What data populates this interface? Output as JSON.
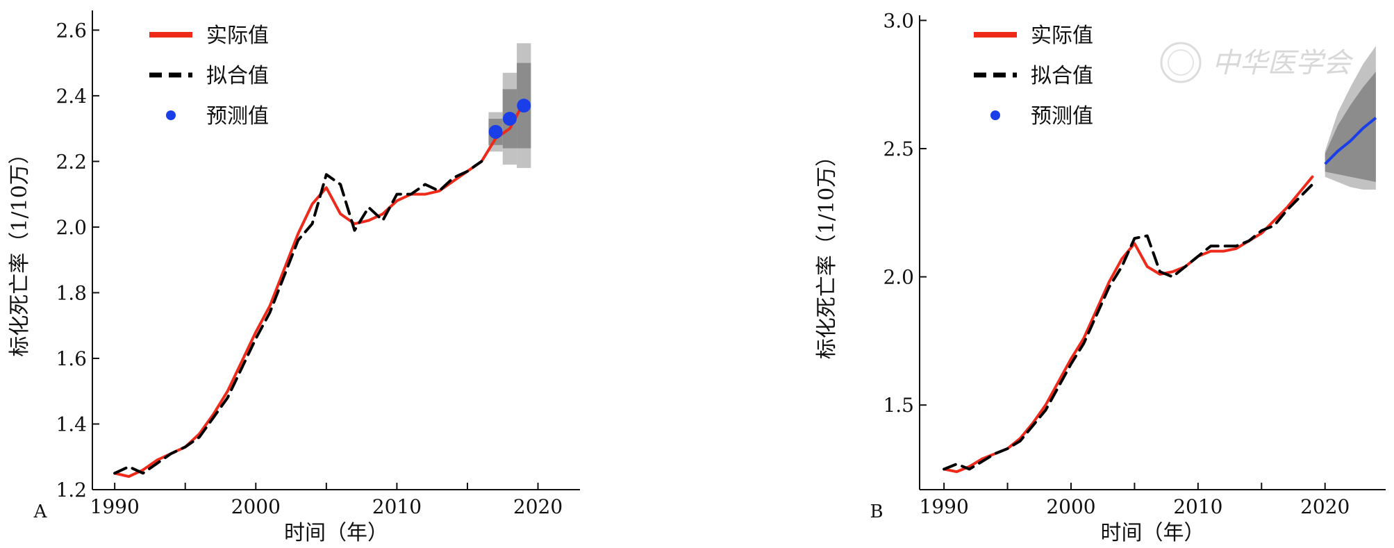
{
  "chart_data": [
    {
      "type": "line",
      "panel_label": "A",
      "xlabel": "时间（年）",
      "ylabel": "标化死亡率（1/10万）",
      "xlim": [
        1989.5,
        2021.5
      ],
      "ylim": [
        1.2,
        2.66
      ],
      "x_ticks": [
        1990,
        2000,
        2010,
        2020
      ],
      "x_tick_labels": [
        "1990",
        "2000",
        "2010",
        "2020"
      ],
      "y_ticks": [
        1.2,
        1.4,
        1.6,
        1.8,
        2.0,
        2.2,
        2.4,
        2.6
      ],
      "y_tick_labels": [
        "1.2",
        "1.4",
        "1.6",
        "1.8",
        "2.0",
        "2.2",
        "2.4",
        "2.6"
      ],
      "legend": {
        "position": "top-left",
        "entries": [
          "实际值",
          "拟合值",
          "预测值"
        ]
      },
      "series": [
        {
          "name": "实际值",
          "style": "solid",
          "color": "#ee2a1b",
          "x": [
            1990,
            1991,
            1992,
            1993,
            1994,
            1995,
            1996,
            1997,
            1998,
            1999,
            2000,
            2001,
            2002,
            2003,
            2004,
            2005,
            2006,
            2007,
            2008,
            2009,
            2010,
            2011,
            2012,
            2013,
            2014,
            2015,
            2016,
            2017,
            2018,
            2019
          ],
          "y": [
            1.25,
            1.24,
            1.26,
            1.29,
            1.31,
            1.33,
            1.37,
            1.43,
            1.5,
            1.59,
            1.68,
            1.76,
            1.87,
            1.98,
            2.07,
            2.12,
            2.04,
            2.01,
            2.02,
            2.04,
            2.08,
            2.1,
            2.1,
            2.11,
            2.14,
            2.17,
            2.2,
            2.27,
            2.3,
            2.38
          ]
        },
        {
          "name": "拟合值",
          "style": "dashed",
          "color": "#000000",
          "x": [
            1990,
            1991,
            1992,
            1993,
            1994,
            1995,
            1996,
            1997,
            1998,
            1999,
            2000,
            2001,
            2002,
            2003,
            2004,
            2005,
            2006,
            2007,
            2008,
            2009,
            2010,
            2011,
            2012,
            2013,
            2014,
            2015,
            2016
          ],
          "y": [
            1.25,
            1.27,
            1.25,
            1.28,
            1.31,
            1.33,
            1.36,
            1.42,
            1.48,
            1.57,
            1.66,
            1.74,
            1.85,
            1.96,
            2.01,
            2.16,
            2.13,
            1.99,
            2.06,
            2.02,
            2.1,
            2.1,
            2.13,
            2.11,
            2.15,
            2.17,
            2.2
          ]
        }
      ],
      "forecast": {
        "name": "预测值",
        "color": "#1a3fe8",
        "x": [
          2017,
          2018,
          2019
        ],
        "y": [
          2.29,
          2.33,
          2.37
        ],
        "interval_inner": [
          [
            2.25,
            2.33
          ],
          [
            2.24,
            2.42
          ],
          [
            2.24,
            2.5
          ]
        ],
        "interval_outer": [
          [
            2.23,
            2.35
          ],
          [
            2.19,
            2.47
          ],
          [
            2.18,
            2.56
          ]
        ]
      }
    },
    {
      "type": "line",
      "panel_label": "B",
      "xlabel": "时间（年）",
      "ylabel": "标化死亡率（1/10万）",
      "xlim": [
        1989.5,
        2024.5
      ],
      "ylim": [
        1.17,
        3.02
      ],
      "x_ticks": [
        1990,
        2000,
        2010,
        2020
      ],
      "x_tick_labels": [
        "1990",
        "2000",
        "2010",
        "2020"
      ],
      "y_ticks": [
        1.5,
        2.0,
        2.5,
        3.0
      ],
      "y_tick_labels": [
        "1.5",
        "2.0",
        "2.5",
        "3.0"
      ],
      "legend": {
        "position": "top-left",
        "entries": [
          "实际值",
          "拟合值",
          "预测值"
        ]
      },
      "watermark": "中华医学会",
      "series": [
        {
          "name": "实际值",
          "style": "solid",
          "color": "#ee2a1b",
          "x": [
            1990,
            1991,
            1992,
            1993,
            1994,
            1995,
            1996,
            1997,
            1998,
            1999,
            2000,
            2001,
            2002,
            2003,
            2004,
            2005,
            2006,
            2007,
            2008,
            2009,
            2010,
            2011,
            2012,
            2013,
            2014,
            2015,
            2016,
            2017,
            2018,
            2019
          ],
          "y": [
            1.25,
            1.24,
            1.26,
            1.29,
            1.31,
            1.33,
            1.37,
            1.43,
            1.5,
            1.59,
            1.68,
            1.76,
            1.87,
            1.98,
            2.07,
            2.13,
            2.04,
            2.01,
            2.02,
            2.04,
            2.08,
            2.1,
            2.1,
            2.11,
            2.14,
            2.17,
            2.22,
            2.27,
            2.33,
            2.39
          ]
        },
        {
          "name": "拟合值",
          "style": "dashed",
          "color": "#000000",
          "x": [
            1990,
            1991,
            1992,
            1993,
            1994,
            1995,
            1996,
            1997,
            1998,
            1999,
            2000,
            2001,
            2002,
            2003,
            2004,
            2005,
            2006,
            2007,
            2008,
            2009,
            2010,
            2011,
            2012,
            2013,
            2014,
            2015,
            2016,
            2017,
            2018,
            2019
          ],
          "y": [
            1.25,
            1.27,
            1.25,
            1.28,
            1.31,
            1.33,
            1.36,
            1.42,
            1.48,
            1.57,
            1.66,
            1.74,
            1.85,
            1.96,
            2.04,
            2.15,
            2.16,
            2.02,
            2.0,
            2.04,
            2.08,
            2.12,
            2.12,
            2.12,
            2.14,
            2.18,
            2.2,
            2.26,
            2.31,
            2.36
          ]
        }
      ],
      "forecast": {
        "name": "预测值",
        "color": "#1a3fe8",
        "x": [
          2020,
          2021,
          2022,
          2023,
          2024
        ],
        "y": [
          2.44,
          2.49,
          2.53,
          2.58,
          2.62
        ],
        "interval_inner": [
          [
            2.41,
            2.48
          ],
          [
            2.4,
            2.59
          ],
          [
            2.39,
            2.67
          ],
          [
            2.38,
            2.74
          ],
          [
            2.37,
            2.8
          ]
        ],
        "interval_outer": [
          [
            2.39,
            2.49
          ],
          [
            2.37,
            2.64
          ],
          [
            2.35,
            2.74
          ],
          [
            2.34,
            2.83
          ],
          [
            2.34,
            2.9
          ]
        ]
      }
    }
  ]
}
